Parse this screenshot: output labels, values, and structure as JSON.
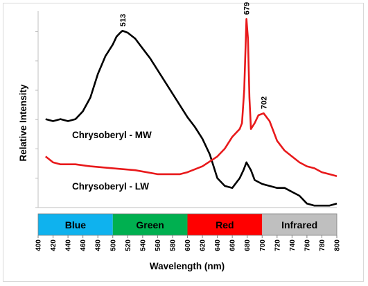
{
  "chart_data": {
    "type": "line",
    "title": "",
    "xlabel": "Wavelength (nm)",
    "ylabel": "Relative Intensity",
    "xlim": [
      400,
      800
    ],
    "ylim": [
      0,
      10
    ],
    "x_ticks": [
      "400",
      "420",
      "440",
      "460",
      "480",
      "500",
      "520",
      "540",
      "560",
      "580",
      "600",
      "620",
      "640",
      "660",
      "680",
      "700",
      "720",
      "740",
      "760",
      "780",
      "800"
    ],
    "y_tick_count": 7,
    "grid": false,
    "legend": "none",
    "series": [
      {
        "name": "Chrysoberyl - MW",
        "color": "#000000",
        "points": [
          [
            410,
            4.5
          ],
          [
            420,
            4.4
          ],
          [
            430,
            4.5
          ],
          [
            440,
            4.4
          ],
          [
            450,
            4.5
          ],
          [
            460,
            4.9
          ],
          [
            470,
            5.6
          ],
          [
            480,
            6.8
          ],
          [
            490,
            7.7
          ],
          [
            500,
            8.3
          ],
          [
            505,
            8.7
          ],
          [
            510,
            8.9
          ],
          [
            513,
            9.0
          ],
          [
            520,
            8.9
          ],
          [
            530,
            8.6
          ],
          [
            540,
            8.1
          ],
          [
            550,
            7.6
          ],
          [
            560,
            7.0
          ],
          [
            570,
            6.4
          ],
          [
            580,
            5.8
          ],
          [
            590,
            5.2
          ],
          [
            600,
            4.6
          ],
          [
            610,
            4.1
          ],
          [
            620,
            3.5
          ],
          [
            630,
            2.7
          ],
          [
            640,
            1.5
          ],
          [
            650,
            1.1
          ],
          [
            660,
            1.0
          ],
          [
            670,
            1.5
          ],
          [
            675,
            1.9
          ],
          [
            679,
            2.3
          ],
          [
            685,
            1.9
          ],
          [
            690,
            1.4
          ],
          [
            700,
            1.2
          ],
          [
            710,
            1.1
          ],
          [
            720,
            1.0
          ],
          [
            730,
            1.0
          ],
          [
            740,
            0.8
          ],
          [
            750,
            0.6
          ],
          [
            760,
            0.2
          ],
          [
            770,
            0.1
          ],
          [
            780,
            0.1
          ],
          [
            790,
            0.1
          ],
          [
            800,
            0.2
          ]
        ]
      },
      {
        "name": "Chrysoberyl - LW",
        "color": "#e8191b",
        "points": [
          [
            410,
            2.6
          ],
          [
            420,
            2.3
          ],
          [
            430,
            2.2
          ],
          [
            450,
            2.2
          ],
          [
            470,
            2.1
          ],
          [
            500,
            2.0
          ],
          [
            530,
            1.9
          ],
          [
            560,
            1.7
          ],
          [
            590,
            1.7
          ],
          [
            600,
            1.8
          ],
          [
            620,
            2.1
          ],
          [
            640,
            2.6
          ],
          [
            650,
            3.0
          ],
          [
            660,
            3.6
          ],
          [
            670,
            4.0
          ],
          [
            673,
            4.3
          ],
          [
            676,
            6.0
          ],
          [
            679,
            9.6
          ],
          [
            681,
            8.6
          ],
          [
            683,
            5.6
          ],
          [
            685,
            4.0
          ],
          [
            690,
            4.3
          ],
          [
            695,
            4.7
          ],
          [
            702,
            4.8
          ],
          [
            710,
            4.4
          ],
          [
            720,
            3.4
          ],
          [
            730,
            2.9
          ],
          [
            740,
            2.6
          ],
          [
            750,
            2.3
          ],
          [
            760,
            2.1
          ],
          [
            770,
            2.0
          ],
          [
            780,
            1.8
          ],
          [
            790,
            1.7
          ],
          [
            800,
            1.6
          ]
        ]
      }
    ],
    "annotations": [
      {
        "text": "513",
        "x": 513,
        "y": 9.0
      },
      {
        "text": "679",
        "x": 679,
        "y": 9.6
      },
      {
        "text": "702",
        "x": 702,
        "y": 4.8
      }
    ],
    "series_labels": [
      "Chrysoberyl - MW",
      "Chrysoberyl - LW"
    ],
    "bands": [
      {
        "label": "Blue",
        "from": 400,
        "to": 500,
        "color": "#0fb2ee"
      },
      {
        "label": "Green",
        "from": 500,
        "to": 600,
        "color": "#00b050"
      },
      {
        "label": "Red",
        "from": 600,
        "to": 700,
        "color": "#ff0000"
      },
      {
        "label": "Infrared",
        "from": 700,
        "to": 800,
        "color": "#bfbfbf"
      }
    ]
  }
}
